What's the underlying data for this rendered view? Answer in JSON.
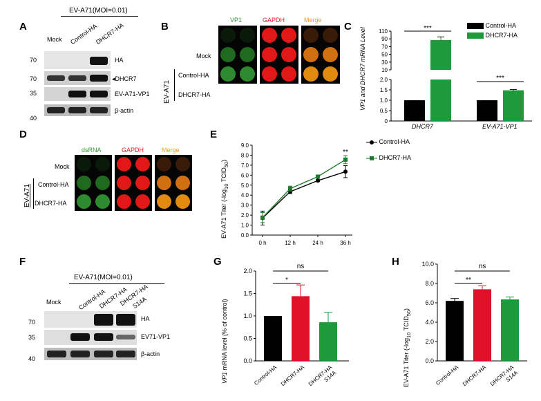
{
  "panels": {
    "A": {
      "label": "A",
      "condition": "EV-A71(MOI=0.01)",
      "lanes": [
        "Mock",
        "Control-HA",
        "DHCR7-HA"
      ],
      "mw": [
        "70",
        "70",
        "35",
        "40"
      ],
      "bands": [
        "HA",
        "DHCR7",
        "EV-A71-VP1",
        "β-actin"
      ]
    },
    "B": {
      "label": "B",
      "cols": [
        "VP1",
        "GAPDH",
        "Merge"
      ],
      "rows": [
        "Mock",
        "Control-HA",
        "DHCR7-HA"
      ],
      "group": "EV-A71",
      "colors": {
        "vp1": "#2e9a2e",
        "gapdh": "#e02020",
        "merge": "#e8a020"
      }
    },
    "C": {
      "label": "C",
      "ylabel": "VP1 and DHCR7 mRNA Level",
      "legend": [
        "Control-HA",
        "DHCR7-HA"
      ],
      "yticks_top": [
        "110",
        "90",
        "70",
        "50",
        "30",
        "10"
      ],
      "yticks_bottom": [
        "2.0",
        "1.5",
        "1.0",
        "0.5",
        "0"
      ],
      "sig": [
        "***",
        "***"
      ]
    },
    "D": {
      "label": "D",
      "cols": [
        "dsRNA",
        "GAPDH",
        "Merge"
      ],
      "rows": [
        "Mock",
        "Control-HA",
        "DHCR7-HA"
      ],
      "group": "EV-A71"
    },
    "E": {
      "label": "E",
      "ylabel_main": "EV-A71 Titer  (-log",
      "ylabel_sub": "10",
      "ylabel_end": " TCID",
      "ylabel_sub2": "50",
      "ylabel_close": ")",
      "legend": [
        "Control-HA",
        "DHCR7-HA"
      ],
      "sig": "**"
    },
    "F": {
      "label": "F",
      "condition": "EV-A71(MOI=0.01)",
      "lanes": [
        "Mock",
        "Control-HA",
        "DHCR7-HA",
        "DHCR7-HA",
        "S14A"
      ],
      "mw": [
        "70",
        "35",
        "40"
      ],
      "bands": [
        "HA",
        "EV71-VP1",
        "β-actin"
      ]
    },
    "G": {
      "label": "G",
      "ylabel_ital": "VP1",
      "ylabel_rest": " mRNA level   (% of control)",
      "sig": [
        "ns",
        "*"
      ]
    },
    "H": {
      "label": "H",
      "ylabel_main": "EV-A71 Titer   (-log",
      "ylabel_sub": "10",
      "ylabel_end": " TCID",
      "ylabel_sub2": "50",
      "ylabel_close": ")",
      "sig": [
        "ns",
        "**"
      ]
    }
  },
  "chart_data": [
    {
      "id": "C",
      "type": "bar",
      "categories": [
        "DHCR7",
        "EV-A71-VP1"
      ],
      "series": [
        {
          "name": "Control-HA",
          "values": [
            1.0,
            1.0
          ],
          "color": "#000000"
        },
        {
          "name": "DHCR7-HA",
          "values": [
            87,
            1.48
          ],
          "errors": [
            8,
            0.04
          ],
          "color": "#1e9a3c"
        }
      ],
      "ylabel": "VP1 and DHCR7 mRNA Level",
      "ylim": [
        0,
        110
      ],
      "axis_break": [
        2.0,
        10
      ]
    },
    {
      "id": "E",
      "type": "line",
      "x": [
        "0 h",
        "12 h",
        "24 h",
        "36 h"
      ],
      "series": [
        {
          "name": "Control-HA",
          "values": [
            1.7,
            4.35,
            5.45,
            6.35
          ],
          "errors": [
            0.7,
            0.2,
            0.1,
            0.6
          ],
          "color": "#000000"
        },
        {
          "name": "DHCR7-HA",
          "values": [
            1.75,
            4.65,
            5.85,
            7.55
          ],
          "errors": [
            0.5,
            0.25,
            0.1,
            0.4
          ],
          "color": "#1e7a2c"
        }
      ],
      "yticks": [
        "0.0",
        "1.0",
        "2.0",
        "3.0",
        "4.0",
        "5.0",
        "6.0",
        "7.0",
        "8.0",
        "9.0"
      ],
      "ylim": [
        0,
        9
      ]
    },
    {
      "id": "G",
      "type": "bar",
      "categories": [
        "Control-HA",
        "DHCR7-HA",
        "DHCR7-HA S14A"
      ],
      "values": [
        1.0,
        1.44,
        0.86
      ],
      "errors": [
        0,
        0.25,
        0.22
      ],
      "colors": [
        "#000000",
        "#e0102a",
        "#1e9a3c"
      ],
      "yticks": [
        "0.0",
        "0.5",
        "1.0",
        "1.5",
        "2.0"
      ],
      "ylim": [
        0,
        2.0
      ]
    },
    {
      "id": "H",
      "type": "bar",
      "categories": [
        "Control-HA",
        "DHCR7-HA",
        "DHCR7-HA S14A"
      ],
      "values": [
        6.2,
        7.4,
        6.35
      ],
      "errors": [
        0.25,
        0.35,
        0.25
      ],
      "colors": [
        "#000000",
        "#e0102a",
        "#1e9a3c"
      ],
      "yticks": [
        "0.0",
        "2.0",
        "4.0",
        "6.0",
        "8.0",
        "10.0"
      ],
      "ylim": [
        0,
        10
      ]
    }
  ]
}
